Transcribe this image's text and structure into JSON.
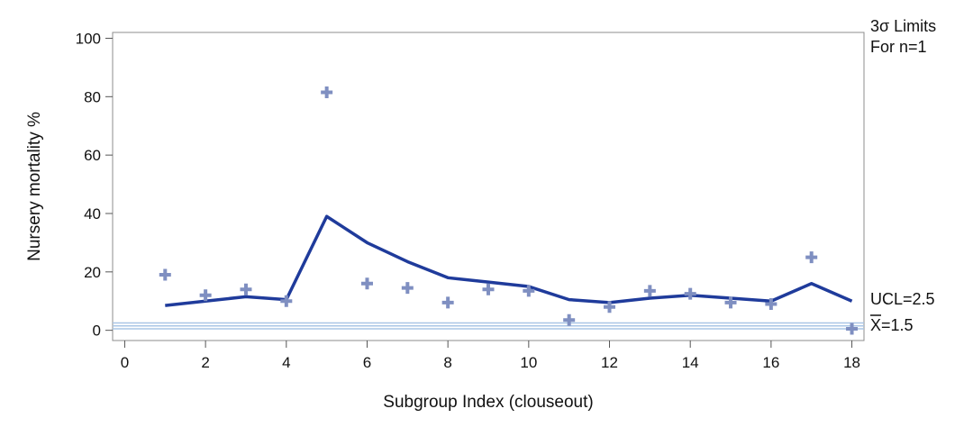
{
  "chart_data": {
    "type": "line",
    "xlabel": "Subgroup Index (clouseout)",
    "ylabel": "Nursery mortality %",
    "xlim": [
      -0.3,
      18.3
    ],
    "ylim": [
      -3.5,
      102
    ],
    "x_ticks": [
      0,
      2,
      4,
      6,
      8,
      10,
      12,
      14,
      16,
      18
    ],
    "y_ticks": [
      0,
      20,
      40,
      60,
      80,
      100
    ],
    "x_tick_labels": [
      "0",
      "2",
      "4",
      "6",
      "8",
      "10",
      "12",
      "14",
      "16",
      "18"
    ],
    "y_tick_labels": [
      "0",
      "20",
      "40",
      "60",
      "80",
      "100"
    ],
    "grid": false,
    "limits_label_line1": "3σ Limits",
    "limits_label_line2": "For n=1",
    "ucl_label": "UCL=2.5",
    "xbar_symbol": "X",
    "xbar_value_label": "=1.5",
    "ucl_value": 2.5,
    "xbar_value": 1.5,
    "lcl_value": 0.5,
    "colors": {
      "line": "#1f3b9b",
      "points": "#7f8fc1",
      "limit_lines": "#a9c6e6",
      "axis": "#555555"
    },
    "series": [
      {
        "marker": "plus",
        "x": [
          1,
          2,
          3,
          4,
          5,
          6,
          7,
          8,
          9,
          10,
          11,
          12,
          13,
          14,
          15,
          16,
          17,
          18
        ],
        "values": [
          19,
          12,
          14,
          10,
          81.5,
          16,
          14.5,
          9.5,
          14,
          13.5,
          3.5,
          8,
          13.5,
          12.5,
          9.5,
          9,
          25,
          0.5
        ]
      },
      {
        "marker": "none",
        "x": [
          1,
          2,
          3,
          4,
          5,
          6,
          7,
          8,
          9,
          10,
          11,
          12,
          13,
          14,
          15,
          16,
          17,
          18
        ],
        "values": [
          8.5,
          10,
          11.5,
          10.5,
          39,
          30,
          23.5,
          18,
          16.5,
          15,
          10.5,
          9.5,
          11,
          12,
          11,
          10,
          16,
          10
        ]
      }
    ]
  }
}
